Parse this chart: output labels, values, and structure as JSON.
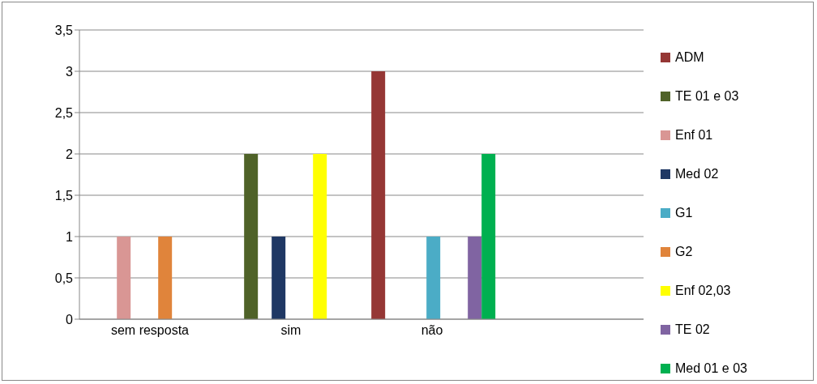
{
  "chart_data": {
    "type": "bar",
    "categories": [
      "sem resposta",
      "sim",
      "não",
      null
    ],
    "series": [
      {
        "name": "ADM",
        "color": "#953735",
        "values": [
          null,
          null,
          3,
          null
        ]
      },
      {
        "name": "TE 01 e 03",
        "color": "#4f6228",
        "values": [
          null,
          2,
          null,
          null
        ]
      },
      {
        "name": "Enf 01",
        "color": "#d99694",
        "values": [
          1,
          null,
          null,
          null
        ]
      },
      {
        "name": "Med 02",
        "color": "#1f3864",
        "values": [
          null,
          1,
          null,
          null
        ]
      },
      {
        "name": "G1",
        "color": "#4bacc6",
        "values": [
          null,
          null,
          1,
          null
        ]
      },
      {
        "name": "G2",
        "color": "#e0843b",
        "values": [
          1,
          null,
          null,
          null
        ]
      },
      {
        "name": "Enf 02,03",
        "color": "#ffff00",
        "values": [
          null,
          2,
          null,
          null
        ]
      },
      {
        "name": "TE 02",
        "color": "#8064a2",
        "values": [
          null,
          null,
          1,
          null
        ]
      },
      {
        "name": "Med 01 e 03",
        "color": "#00b050",
        "values": [
          null,
          null,
          2,
          null
        ]
      }
    ],
    "ylim": [
      0,
      3.5
    ],
    "yticks": [
      0,
      {
        "value": 0.5,
        "label": "0,5"
      },
      1,
      {
        "value": 1.5,
        "label": "1,5"
      },
      2,
      {
        "value": 2.5,
        "label": "2,5"
      },
      3,
      {
        "value": 3.5,
        "label": "3,5"
      }
    ],
    "grid": "y",
    "legend": "right"
  }
}
